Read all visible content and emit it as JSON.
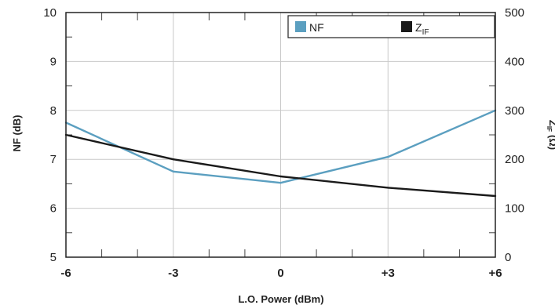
{
  "chart_data": {
    "type": "line",
    "xlabel": "L.O. Power (dBm)",
    "ylabel": "NF (dB)",
    "y2label_main": "Z",
    "y2label_sub": "IF",
    "y2label_unit": "(Ω)",
    "categories": [
      "-6",
      "-3",
      "0",
      "+3",
      "+6"
    ],
    "x": [
      -6,
      -3,
      0,
      3,
      6
    ],
    "xlim": [
      -6,
      6
    ],
    "ylim": [
      5,
      10
    ],
    "y2lim": [
      0,
      500
    ],
    "yticks": [
      "5",
      "6",
      "7",
      "8",
      "9",
      "10"
    ],
    "y2ticks": [
      "0",
      "100",
      "200",
      "300",
      "400",
      "500"
    ],
    "grid": true,
    "legend_position": "top-right",
    "series": [
      {
        "name": "NF",
        "sub": "",
        "axis": "left",
        "color": "#5b9fc0",
        "values": [
          7.75,
          6.75,
          6.52,
          7.05,
          8.0
        ]
      },
      {
        "name": "Z",
        "sub": "IF",
        "axis": "right",
        "color": "#1a1a1a",
        "values": [
          250,
          200,
          165,
          142,
          125
        ]
      }
    ]
  }
}
